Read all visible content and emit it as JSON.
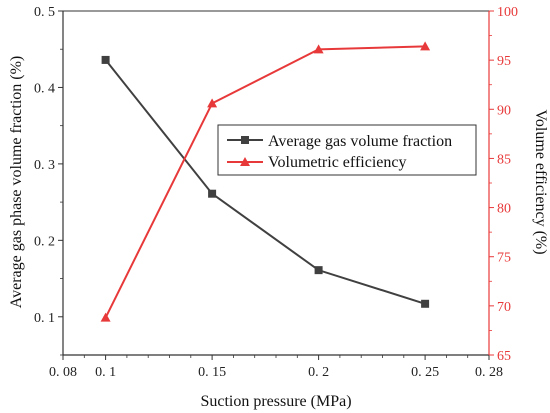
{
  "chart_data": {
    "type": "line",
    "xlabel": "Suction pressure (MPa)",
    "ylabel_left": "Average gas phase volume fraction (%)",
    "ylabel_right": "Volume efficiency (%)",
    "xlim": [
      0.08,
      0.28
    ],
    "x_ticks": [
      0.08,
      0.1,
      0.15,
      0.2,
      0.25,
      0.28
    ],
    "x_tick_labels": [
      "0. 08",
      "0. 1",
      "0. 15",
      "0. 2",
      "0. 25",
      "0. 28"
    ],
    "ylim_left": [
      0.05,
      0.5
    ],
    "y_left_ticks": [
      0.1,
      0.2,
      0.3,
      0.4,
      0.5
    ],
    "y_left_tick_labels": [
      "0. 1",
      "0. 2",
      "0. 3",
      "0. 4",
      "0. 5"
    ],
    "ylim_right": [
      65,
      100
    ],
    "y_right_ticks": [
      65,
      70,
      75,
      80,
      85,
      90,
      95,
      100
    ],
    "y_right_tick_labels": [
      "65",
      "70",
      "75",
      "80",
      "85",
      "90",
      "95",
      "100"
    ],
    "legend_position": "right-middle",
    "series": [
      {
        "name": "Average gas volume fraction",
        "axis": "left",
        "color": "#404040",
        "marker": "square",
        "x": [
          0.1,
          0.15,
          0.2,
          0.25
        ],
        "values": [
          0.436,
          0.261,
          0.161,
          0.117
        ]
      },
      {
        "name": "Volumetric efficiency",
        "axis": "right",
        "color": "#e8393a",
        "marker": "triangle",
        "x": [
          0.1,
          0.15,
          0.2,
          0.25
        ],
        "values": [
          68.8,
          90.6,
          96.1,
          96.4
        ]
      }
    ],
    "axis_colors": {
      "left": "#333333",
      "right": "#e8393a"
    }
  }
}
